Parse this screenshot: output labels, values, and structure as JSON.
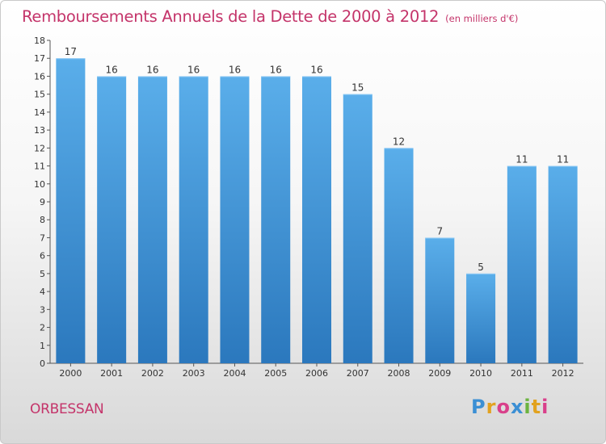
{
  "title": "Remboursements Annuels de la Dette de 2000 à 2012",
  "unit_label": "(en milliers d'€)",
  "town": "ORBESSAN",
  "logo": {
    "letters": [
      "P",
      "r",
      "o",
      "x",
      "i",
      "t",
      "i"
    ],
    "colors": [
      "#3b8fd4",
      "#e2a21f",
      "#d9408b",
      "#3b8fd4",
      "#6cb33f",
      "#e2a21f",
      "#d9408b"
    ]
  },
  "chart_data": {
    "type": "bar",
    "title": "Remboursements Annuels de la Dette de 2000 à 2012",
    "unit": "(en milliers d'€)",
    "categories": [
      "2000",
      "2001",
      "2002",
      "2003",
      "2004",
      "2005",
      "2006",
      "2007",
      "2008",
      "2009",
      "2010",
      "2011",
      "2012"
    ],
    "values": [
      17,
      16,
      16,
      16,
      16,
      16,
      16,
      15,
      12,
      7,
      5,
      11,
      11
    ],
    "ylim": [
      0,
      18
    ],
    "yticks": [
      0,
      1,
      2,
      3,
      4,
      5,
      6,
      7,
      8,
      9,
      10,
      11,
      12,
      13,
      14,
      15,
      16,
      17,
      18
    ],
    "xlabel": "",
    "ylabel": "",
    "grid": false,
    "legend": "none",
    "bar_color": "#3d94d8"
  }
}
